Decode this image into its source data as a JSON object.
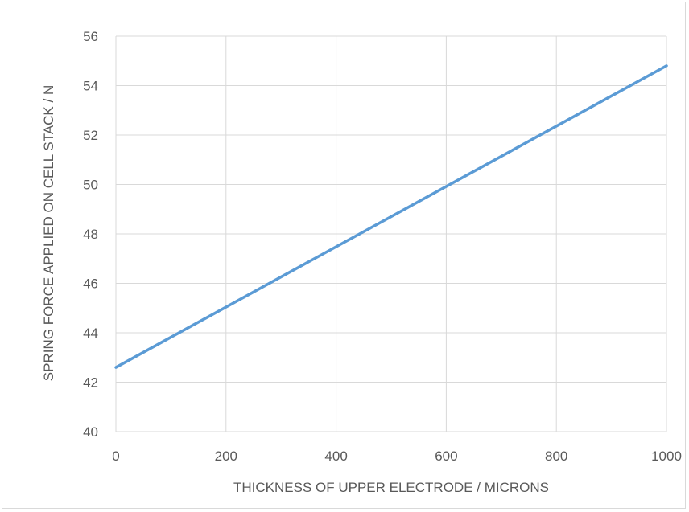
{
  "chart_data": {
    "type": "line",
    "title": "",
    "xlabel": "THICKNESS OF UPPER ELECTRODE / MICRONS",
    "ylabel": "SPRING FORCE APPLIED ON CELL STACK / N",
    "xlim": [
      0,
      1000
    ],
    "ylim": [
      40,
      56
    ],
    "x_ticks": [
      "0",
      "200",
      "400",
      "600",
      "800",
      "1000"
    ],
    "y_ticks": [
      "40",
      "42",
      "44",
      "46",
      "48",
      "50",
      "52",
      "54",
      "56"
    ],
    "grid": true,
    "legend": "none",
    "series": [
      {
        "color": "#5b9bd5",
        "x": [
          0,
          1000
        ],
        "y": [
          42.6,
          54.8
        ]
      }
    ]
  }
}
